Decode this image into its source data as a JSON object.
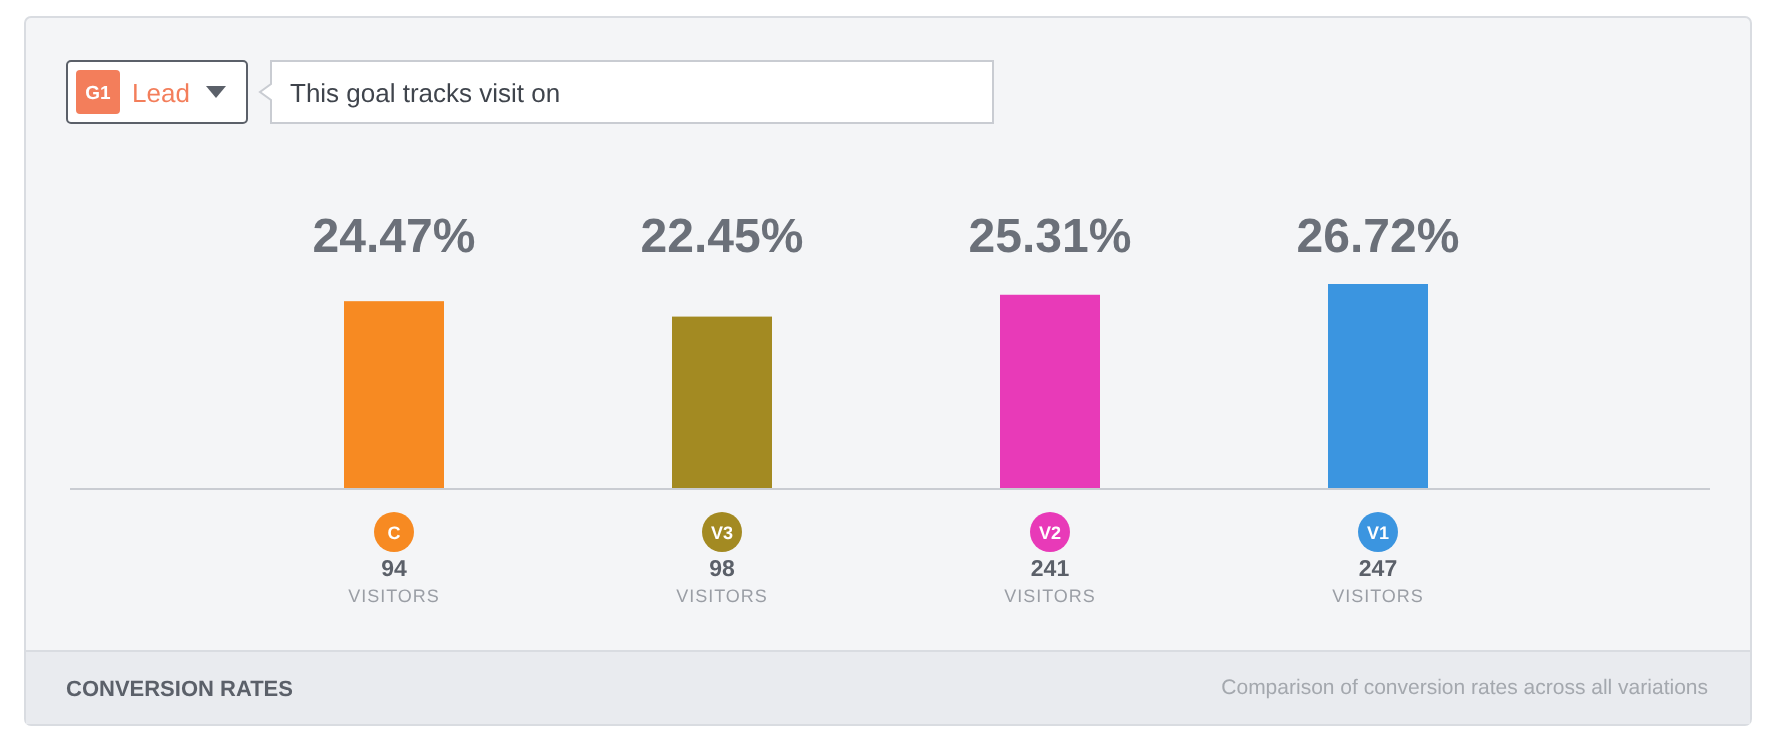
{
  "chart_data": {
    "type": "bar",
    "title": "CONVERSION RATES",
    "subtitle": "Comparison of conversion rates across all variations",
    "categories": [
      "C",
      "V3",
      "V2",
      "V1"
    ],
    "values": [
      24.47,
      22.45,
      25.31,
      26.72
    ],
    "colors": [
      "#f78a22",
      "#a38a22",
      "#e83ab8",
      "#3b95e0"
    ],
    "value_labels": [
      "24.47%",
      "22.45%",
      "25.31%",
      "26.72%"
    ],
    "data_labels": true,
    "annotations": [
      "G1",
      "Lead",
      "This goal tracks visit on",
      "94\nVISITORS",
      "98\nVISITORS",
      "241\nVISITORS",
      "247\nVISITORS"
    ]
  }
}
